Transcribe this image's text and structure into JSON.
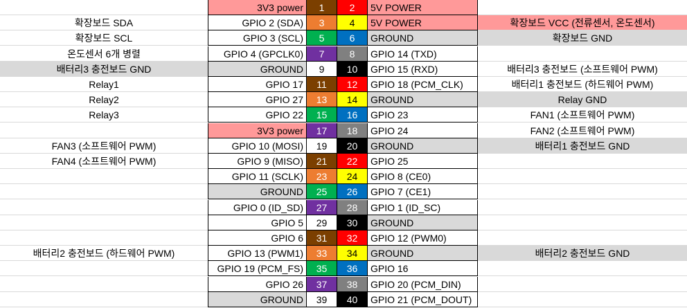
{
  "colors": {
    "brown": "#7b3f00",
    "red": "#ff0000",
    "orange": "#ed7d31",
    "yellow": "#ffff00",
    "green": "#00b050",
    "blue": "#0070c0",
    "purple": "#7030a0",
    "gray": "#808080",
    "white": "#ffffff",
    "black": "#000000",
    "label_gray": "#d9d9d9",
    "label_pink": "#ff9999"
  },
  "rows": [
    {
      "left": "",
      "left_bg": "white",
      "name1": "3V3 power",
      "name1_bg": "pink",
      "pin1": "1",
      "pin1_color": "brown",
      "pin1_text": "white",
      "pin2": "2",
      "pin2_color": "red",
      "pin2_text": "white",
      "name2": "5V POWER",
      "name2_bg": "pink",
      "right": "",
      "right_bg": "white"
    },
    {
      "left": "확장보드 SDA",
      "left_bg": "white",
      "name1": "GPIO 2 (SDA)",
      "name1_bg": "white",
      "pin1": "3",
      "pin1_color": "orange",
      "pin1_text": "white",
      "pin2": "4",
      "pin2_color": "yellow",
      "pin2_text": "black",
      "name2": "5V POWER",
      "name2_bg": "pink",
      "right": "확장보드 VCC (전류센서, 온도센서)",
      "right_bg": "pink"
    },
    {
      "left": "확장보드 SCL",
      "left_bg": "white",
      "name1": "GPIO 3 (SCL)",
      "name1_bg": "white",
      "pin1": "5",
      "pin1_color": "green",
      "pin1_text": "white",
      "pin2": "6",
      "pin2_color": "blue",
      "pin2_text": "white",
      "name2": "GROUND",
      "name2_bg": "gray",
      "right": "확장보드 GND",
      "right_bg": "gray"
    },
    {
      "left": "온도센서 6개 병렬",
      "left_bg": "white",
      "name1": "GPIO 4 (GPCLK0)",
      "name1_bg": "white",
      "pin1": "7",
      "pin1_color": "purple",
      "pin1_text": "white",
      "pin2": "8",
      "pin2_color": "gray",
      "pin2_text": "white",
      "name2": "GPIO 14 (TXD)",
      "name2_bg": "white",
      "right": "",
      "right_bg": "white"
    },
    {
      "left": "배터리3 충전보드 GND",
      "left_bg": "gray",
      "name1": "GROUND",
      "name1_bg": "gray",
      "pin1": "9",
      "pin1_color": "white",
      "pin1_text": "black",
      "pin2": "10",
      "pin2_color": "black",
      "pin2_text": "white",
      "name2": "GPIO 15 (RXD)",
      "name2_bg": "white",
      "right": "배터리3 충전보드 (소프트웨어 PWM)",
      "right_bg": "white"
    },
    {
      "left": "Relay1",
      "left_bg": "white",
      "name1": "GPIO 17",
      "name1_bg": "white",
      "pin1": "11",
      "pin1_color": "brown",
      "pin1_text": "white",
      "pin2": "12",
      "pin2_color": "red",
      "pin2_text": "white",
      "name2": "GPIO 18 (PCM_CLK)",
      "name2_bg": "white",
      "right": "배터리1 충전보드 (하드웨어 PWM)",
      "right_bg": "white"
    },
    {
      "left": "Relay2",
      "left_bg": "white",
      "name1": "GPIO 27",
      "name1_bg": "white",
      "pin1": "13",
      "pin1_color": "orange",
      "pin1_text": "white",
      "pin2": "14",
      "pin2_color": "yellow",
      "pin2_text": "black",
      "name2": "GROUND",
      "name2_bg": "gray",
      "right": "Relay GND",
      "right_bg": "gray"
    },
    {
      "left": "Relay3",
      "left_bg": "white",
      "name1": "GPIO 22",
      "name1_bg": "white",
      "pin1": "15",
      "pin1_color": "green",
      "pin1_text": "white",
      "pin2": "16",
      "pin2_color": "blue",
      "pin2_text": "white",
      "name2": "GPIO 23",
      "name2_bg": "white",
      "right": "FAN1 (소프트웨어 PWM)",
      "right_bg": "white"
    },
    {
      "left": "",
      "left_bg": "white",
      "name1": "3V3 power",
      "name1_bg": "pink",
      "pin1": "17",
      "pin1_color": "purple",
      "pin1_text": "white",
      "pin2": "18",
      "pin2_color": "gray",
      "pin2_text": "white",
      "name2": "GPIO 24",
      "name2_bg": "white",
      "right": "FAN2 (소프트웨어 PWM)",
      "right_bg": "white"
    },
    {
      "left": "FAN3 (소프트웨어 PWM)",
      "left_bg": "white",
      "name1": "GPIO 10 (MOSI)",
      "name1_bg": "white",
      "pin1": "19",
      "pin1_color": "white",
      "pin1_text": "black",
      "pin2": "20",
      "pin2_color": "black",
      "pin2_text": "white",
      "name2": "GROUND",
      "name2_bg": "gray",
      "right": "배터리1 충전보드 GND",
      "right_bg": "gray"
    },
    {
      "left": "FAN4 (소프트웨어 PWM)",
      "left_bg": "white",
      "name1": "GPIO 9 (MISO)",
      "name1_bg": "white",
      "pin1": "21",
      "pin1_color": "brown",
      "pin1_text": "white",
      "pin2": "22",
      "pin2_color": "red",
      "pin2_text": "white",
      "name2": "GPIO 25",
      "name2_bg": "white",
      "right": "",
      "right_bg": "white"
    },
    {
      "left": "",
      "left_bg": "white",
      "name1": "GPIO 11 (SCLK)",
      "name1_bg": "white",
      "pin1": "23",
      "pin1_color": "orange",
      "pin1_text": "white",
      "pin2": "24",
      "pin2_color": "yellow",
      "pin2_text": "black",
      "name2": "GPIO 8 (CE0)",
      "name2_bg": "white",
      "right": "",
      "right_bg": "white"
    },
    {
      "left": "",
      "left_bg": "white",
      "name1": "GROUND",
      "name1_bg": "gray",
      "pin1": "25",
      "pin1_color": "green",
      "pin1_text": "white",
      "pin2": "26",
      "pin2_color": "blue",
      "pin2_text": "white",
      "name2": "GPIO 7 (CE1)",
      "name2_bg": "white",
      "right": "",
      "right_bg": "white"
    },
    {
      "left": "",
      "left_bg": "white",
      "name1": "GPIO 0 (ID_SD)",
      "name1_bg": "white",
      "pin1": "27",
      "pin1_color": "purple",
      "pin1_text": "white",
      "pin2": "28",
      "pin2_color": "gray",
      "pin2_text": "white",
      "name2": "GPIO 1 (ID_SC)",
      "name2_bg": "white",
      "right": "",
      "right_bg": "white"
    },
    {
      "left": "",
      "left_bg": "white",
      "name1": "GPIO 5",
      "name1_bg": "white",
      "pin1": "29",
      "pin1_color": "white",
      "pin1_text": "black",
      "pin2": "30",
      "pin2_color": "black",
      "pin2_text": "white",
      "name2": "GROUND",
      "name2_bg": "gray",
      "right": "",
      "right_bg": "white"
    },
    {
      "left": "",
      "left_bg": "white",
      "name1": "GPIO 6",
      "name1_bg": "white",
      "pin1": "31",
      "pin1_color": "brown",
      "pin1_text": "white",
      "pin2": "32",
      "pin2_color": "red",
      "pin2_text": "white",
      "name2": "GPIO 12 (PWM0)",
      "name2_bg": "white",
      "right": "",
      "right_bg": "white"
    },
    {
      "left": "배터리2 충전보드 (하드웨어 PWM)",
      "left_bg": "white",
      "name1": "GPIO 13 (PWM1)",
      "name1_bg": "white",
      "pin1": "33",
      "pin1_color": "orange",
      "pin1_text": "white",
      "pin2": "34",
      "pin2_color": "yellow",
      "pin2_text": "black",
      "name2": "GROUND",
      "name2_bg": "gray",
      "right": "배터리2 충전보드 GND",
      "right_bg": "gray"
    },
    {
      "left": "",
      "left_bg": "white",
      "name1": "GPIO 19 (PCM_FS)",
      "name1_bg": "white",
      "pin1": "35",
      "pin1_color": "green",
      "pin1_text": "white",
      "pin2": "36",
      "pin2_color": "blue",
      "pin2_text": "white",
      "name2": "GPIO 16",
      "name2_bg": "white",
      "right": "",
      "right_bg": "white"
    },
    {
      "left": "",
      "left_bg": "white",
      "name1": "GPIO 26",
      "name1_bg": "white",
      "pin1": "37",
      "pin1_color": "purple",
      "pin1_text": "white",
      "pin2": "38",
      "pin2_color": "gray",
      "pin2_text": "white",
      "name2": "GPIO 20 (PCM_DIN)",
      "name2_bg": "white",
      "right": "",
      "right_bg": "white"
    },
    {
      "left": "",
      "left_bg": "white",
      "name1": "GROUND",
      "name1_bg": "gray",
      "pin1": "39",
      "pin1_color": "white",
      "pin1_text": "black",
      "pin2": "40",
      "pin2_color": "black",
      "pin2_text": "white",
      "name2": "GPIO 21 (PCM_DOUT)",
      "name2_bg": "white",
      "right": "",
      "right_bg": "white"
    }
  ]
}
